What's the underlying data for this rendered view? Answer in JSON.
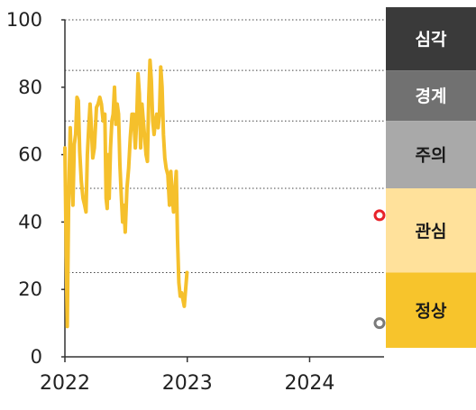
{
  "chart_data": {
    "type": "line",
    "xlabel": "",
    "ylabel": "",
    "ylim": [
      0,
      100
    ],
    "x_ticks": [
      "2022",
      "2023",
      "2024"
    ],
    "y_ticks": [
      "0",
      "20",
      "40",
      "60",
      "80",
      "100"
    ],
    "grid": "dotted horizontal lines at 25, 50, 70, 85, 100",
    "series": [
      {
        "color": "#f5c02c",
        "points": [
          [
            "2022-01-01",
            62
          ],
          [
            "2022-01-05",
            30
          ],
          [
            "2022-01-08",
            9
          ],
          [
            "2022-01-12",
            45
          ],
          [
            "2022-01-17",
            68
          ],
          [
            "2022-01-21",
            55
          ],
          [
            "2022-01-25",
            45
          ],
          [
            "2022-01-29",
            63
          ],
          [
            "2022-02-02",
            66
          ],
          [
            "2022-02-06",
            77
          ],
          [
            "2022-02-10",
            76
          ],
          [
            "2022-02-14",
            61
          ],
          [
            "2022-02-19",
            52
          ],
          [
            "2022-02-24",
            47
          ],
          [
            "2022-03-01",
            45
          ],
          [
            "2022-03-05",
            43
          ],
          [
            "2022-03-09",
            60
          ],
          [
            "2022-03-13",
            68
          ],
          [
            "2022-03-17",
            75
          ],
          [
            "2022-03-21",
            68
          ],
          [
            "2022-03-25",
            59
          ],
          [
            "2022-03-30",
            62
          ],
          [
            "2022-04-05",
            74
          ],
          [
            "2022-04-10",
            75
          ],
          [
            "2022-04-15",
            77
          ],
          [
            "2022-04-20",
            75
          ],
          [
            "2022-04-25",
            70
          ],
          [
            "2022-04-30",
            72
          ],
          [
            "2022-05-04",
            47
          ],
          [
            "2022-05-07",
            44
          ],
          [
            "2022-05-10",
            60
          ],
          [
            "2022-05-13",
            47
          ],
          [
            "2022-05-17",
            62
          ],
          [
            "2022-05-21",
            70
          ],
          [
            "2022-05-25",
            72
          ],
          [
            "2022-05-29",
            80
          ],
          [
            "2022-06-02",
            69
          ],
          [
            "2022-06-06",
            75
          ],
          [
            "2022-06-10",
            72
          ],
          [
            "2022-06-14",
            57
          ],
          [
            "2022-06-18",
            48
          ],
          [
            "2022-06-22",
            40
          ],
          [
            "2022-06-26",
            45
          ],
          [
            "2022-06-30",
            37
          ],
          [
            "2022-07-05",
            50
          ],
          [
            "2022-07-10",
            56
          ],
          [
            "2022-07-15",
            65
          ],
          [
            "2022-07-20",
            72
          ],
          [
            "2022-07-25",
            72
          ],
          [
            "2022-07-30",
            62
          ],
          [
            "2022-08-03",
            70
          ],
          [
            "2022-08-07",
            84
          ],
          [
            "2022-08-11",
            78
          ],
          [
            "2022-08-15",
            62
          ],
          [
            "2022-08-19",
            75
          ],
          [
            "2022-08-23",
            70
          ],
          [
            "2022-08-27",
            65
          ],
          [
            "2022-08-31",
            60
          ],
          [
            "2022-09-04",
            58
          ],
          [
            "2022-09-08",
            77
          ],
          [
            "2022-09-12",
            88
          ],
          [
            "2022-09-16",
            82
          ],
          [
            "2022-09-20",
            70
          ],
          [
            "2022-09-24",
            66
          ],
          [
            "2022-09-28",
            70
          ],
          [
            "2022-10-02",
            72
          ],
          [
            "2022-10-06",
            68
          ],
          [
            "2022-10-10",
            72
          ],
          [
            "2022-10-14",
            86
          ],
          [
            "2022-10-18",
            80
          ],
          [
            "2022-10-22",
            66
          ],
          [
            "2022-10-26",
            59
          ],
          [
            "2022-10-30",
            56
          ],
          [
            "2022-11-04",
            54
          ],
          [
            "2022-11-09",
            45
          ],
          [
            "2022-11-13",
            55
          ],
          [
            "2022-11-17",
            48
          ],
          [
            "2022-11-21",
            43
          ],
          [
            "2022-11-25",
            49
          ],
          [
            "2022-11-29",
            55
          ],
          [
            "2022-12-03",
            35
          ],
          [
            "2022-12-07",
            22
          ],
          [
            "2022-12-11",
            18
          ],
          [
            "2022-12-15",
            19
          ],
          [
            "2022-12-19",
            17
          ],
          [
            "2022-12-23",
            15
          ],
          [
            "2022-12-27",
            20
          ],
          [
            "2022-12-31",
            25
          ]
        ]
      }
    ],
    "annotations": [
      {
        "type": "marker",
        "value": 42,
        "color": "#e8232a"
      },
      {
        "type": "marker",
        "value": 10,
        "color": "#7a7a7a"
      }
    ],
    "bands": [
      {
        "label": "심각",
        "from": 85,
        "to": 100,
        "color": "#3a3a3a",
        "text_color": "#ffffff"
      },
      {
        "label": "경계",
        "from": 70,
        "to": 85,
        "color": "#717171",
        "text_color": "#ffffff"
      },
      {
        "label": "주의",
        "from": 50,
        "to": 70,
        "color": "#a9a9a9",
        "text_color": "#1a1a1a"
      },
      {
        "label": "관심",
        "from": 25,
        "to": 50,
        "color": "#ffe19b",
        "text_color": "#1a1a1a"
      },
      {
        "label": "정상",
        "from": 0,
        "to": 25,
        "color": "#f7c42c",
        "text_color": "#1a1a1a"
      }
    ]
  }
}
